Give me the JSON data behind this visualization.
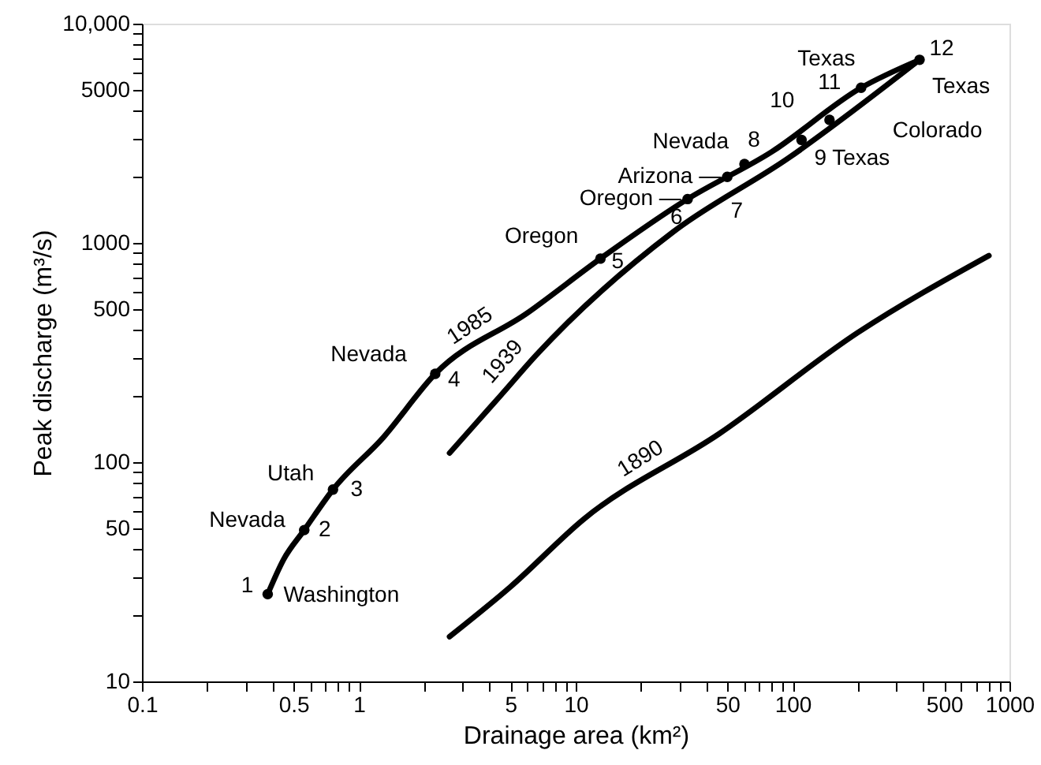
{
  "chart_data": {
    "type": "line",
    "xlabel": "Drainage area (km²)",
    "ylabel": "Peak discharge (m³/s)",
    "log": "xy",
    "grid": false,
    "xlim": [
      0.1,
      1000
    ],
    "ylim": [
      10,
      10000
    ],
    "xticks": [
      0.1,
      {
        "value": 0.2,
        "label": null
      },
      {
        "value": 0.3,
        "label": null
      },
      {
        "value": 0.4,
        "label": null
      },
      0.5,
      {
        "value": 0.6,
        "label": null
      },
      {
        "value": 0.7,
        "label": null
      },
      {
        "value": 0.8,
        "label": null
      },
      {
        "value": 0.9,
        "label": null
      },
      1,
      {
        "value": 2,
        "label": null
      },
      {
        "value": 3,
        "label": null
      },
      {
        "value": 4,
        "label": null
      },
      5,
      {
        "value": 6,
        "label": null
      },
      {
        "value": 7,
        "label": null
      },
      {
        "value": 8,
        "label": null
      },
      {
        "value": 9,
        "label": null
      },
      10,
      {
        "value": 20,
        "label": null
      },
      {
        "value": 30,
        "label": null
      },
      {
        "value": 40,
        "label": null
      },
      50,
      {
        "value": 60,
        "label": null
      },
      {
        "value": 70,
        "label": null
      },
      {
        "value": 80,
        "label": null
      },
      {
        "value": 90,
        "label": null
      },
      100,
      {
        "value": 200,
        "label": null
      },
      {
        "value": 300,
        "label": null
      },
      {
        "value": 400,
        "label": null
      },
      500,
      {
        "value": 600,
        "label": null
      },
      {
        "value": 700,
        "label": null
      },
      {
        "value": 800,
        "label": null
      },
      {
        "value": 900,
        "label": null
      },
      1000
    ],
    "yticks": [
      10,
      {
        "value": 20,
        "label": null
      },
      {
        "value": 30,
        "label": null
      },
      {
        "value": 40,
        "label": null
      },
      50,
      {
        "value": 60,
        "label": null
      },
      {
        "value": 70,
        "label": null
      },
      {
        "value": 80,
        "label": null
      },
      {
        "value": 90,
        "label": null
      },
      100,
      {
        "value": 200,
        "label": null
      },
      {
        "value": 300,
        "label": null
      },
      {
        "value": 400,
        "label": null
      },
      500,
      {
        "value": 600,
        "label": null
      },
      {
        "value": 700,
        "label": null
      },
      {
        "value": 800,
        "label": null
      },
      {
        "value": 900,
        "label": null
      },
      1000,
      {
        "value": 2000,
        "label": null
      },
      {
        "value": 3000,
        "label": null
      },
      {
        "value": 4000,
        "label": null
      },
      5000,
      {
        "value": 6000,
        "label": null
      },
      {
        "value": 7000,
        "label": null
      },
      {
        "value": 8000,
        "label": null
      },
      {
        "value": 9000,
        "label": null
      },
      {
        "value": 10000,
        "label": "10,000"
      }
    ],
    "series": [
      {
        "name": "1985",
        "line_style": "solid",
        "color": "#000000",
        "x": [
          0.38,
          0.45,
          0.56,
          0.76,
          1.3,
          2.25,
          6,
          13,
          32.8,
          80,
          207,
          385
        ],
        "values": [
          25,
          36,
          49,
          75,
          130,
          253,
          480,
          848,
          1585,
          2600,
          5100,
          6840
        ]
      },
      {
        "name": "1939",
        "line_style": "solid",
        "color": "#000000",
        "x": [
          2.62,
          3.5,
          4.5,
          6.58,
          28.2,
          96,
          385
        ],
        "values": [
          110,
          152,
          201,
          308,
          1124,
          2443,
          6840
        ]
      },
      {
        "name": "1890",
        "line_style": "solid",
        "color": "#000000",
        "x": [
          2.62,
          5,
          10.9,
          46,
          200,
          804
        ],
        "values": [
          16,
          27,
          55,
          135,
          390,
          875
        ]
      },
      {
        "type": "scatter",
        "marker": "circle",
        "color": "#000000",
        "x": [
          0.38,
          0.56,
          0.76,
          2.25,
          13,
          32.8,
          50,
          60,
          110,
          148,
          207,
          385
        ],
        "values": [
          25,
          49,
          75,
          253,
          848,
          1585,
          2000,
          2290,
          2950,
          3640,
          5100,
          6840
        ]
      }
    ],
    "annotations": [
      {
        "text": "1",
        "x": 0.38,
        "y": 25
      },
      {
        "text": "Washington",
        "x": 0.38,
        "y": 25
      },
      {
        "text": "2",
        "x": 0.56,
        "y": 49
      },
      {
        "text": "Nevada",
        "x": 0.56,
        "y": 49
      },
      {
        "text": "3",
        "x": 0.76,
        "y": 75
      },
      {
        "text": "Utah",
        "x": 0.76,
        "y": 75
      },
      {
        "text": "4",
        "x": 2.25,
        "y": 253
      },
      {
        "text": "Nevada",
        "x": 2.25,
        "y": 253
      },
      {
        "text": "5",
        "x": 13,
        "y": 848
      },
      {
        "text": "Oregon",
        "x": 13,
        "y": 848
      },
      {
        "text": "Oregon —",
        "x": 32.8,
        "y": 1585
      },
      {
        "text": "6",
        "x": 32.8,
        "y": 1585
      },
      {
        "text": "7",
        "x": 50,
        "y": 2000
      },
      {
        "text": "Arizona —",
        "x": 50,
        "y": 2000
      },
      {
        "text": "Nevada",
        "x": 60,
        "y": 2290
      },
      {
        "text": "8",
        "x": 60,
        "y": 2290
      },
      {
        "text": "9 Texas",
        "x": 110,
        "y": 2950
      },
      {
        "text": "Colorado",
        "x": 148,
        "y": 3640
      },
      {
        "text": "10",
        "x": 148,
        "y": 3640
      },
      {
        "text": "11",
        "x": 207,
        "y": 5100
      },
      {
        "text": "Texas",
        "x": 207,
        "y": 5100
      },
      {
        "text": "12",
        "x": 385,
        "y": 6840
      },
      {
        "text": "Texas",
        "x": 385,
        "y": 6840
      }
    ]
  }
}
